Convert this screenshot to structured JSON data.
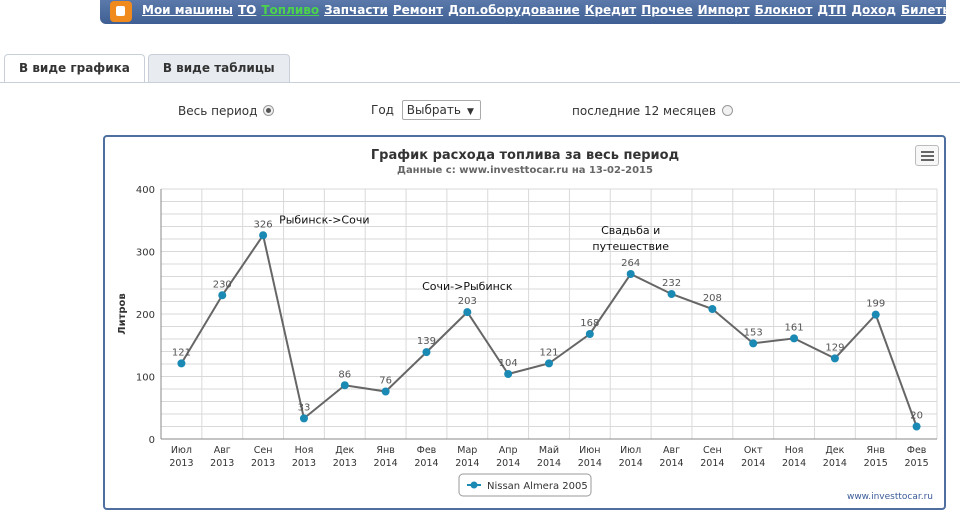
{
  "nav": {
    "items": [
      {
        "label": "Мои машины",
        "active": false
      },
      {
        "label": "ТО",
        "active": false
      },
      {
        "label": "Топливо",
        "active": true
      },
      {
        "label": "Запчасти",
        "active": false
      },
      {
        "label": "Ремонт",
        "active": false
      },
      {
        "label": "Доп.оборудование",
        "active": false
      },
      {
        "label": "Кредит",
        "active": false
      },
      {
        "label": "Прочее",
        "active": false
      },
      {
        "label": "Импорт",
        "active": false
      },
      {
        "label": "Блокнот",
        "active": false
      },
      {
        "label": "ДТП",
        "active": false
      },
      {
        "label": "Доход",
        "active": false
      },
      {
        "label": "Билеты ПДД",
        "active": false
      }
    ]
  },
  "tabs": {
    "graph": "В виде графика",
    "table": "В виде таблицы"
  },
  "filters": {
    "all_period": "Весь период",
    "year_label": "Год",
    "year_select": "Выбрать",
    "last12": "последние 12 месяцев"
  },
  "colors": {
    "line": "#666666",
    "point": "#1a8ab5",
    "grid": "#d9d9d9",
    "panel_border": "#4e6f9f"
  },
  "chart_data": {
    "type": "line",
    "title": "График расхода топлива за весь период",
    "subtitle": "Данные с: www.investtocar.ru на 13-02-2015",
    "ylabel": "Литров",
    "xlabel": "",
    "ylim": [
      0,
      400
    ],
    "yticks": [
      0,
      100,
      200,
      300,
      400
    ],
    "categories": [
      [
        "Июл",
        "2013"
      ],
      [
        "Авг",
        "2013"
      ],
      [
        "Сен",
        "2013"
      ],
      [
        "Ноя",
        "2013"
      ],
      [
        "Дек",
        "2013"
      ],
      [
        "Янв",
        "2014"
      ],
      [
        "Фев",
        "2014"
      ],
      [
        "Мар",
        "2014"
      ],
      [
        "Апр",
        "2014"
      ],
      [
        "Май",
        "2014"
      ],
      [
        "Июн",
        "2014"
      ],
      [
        "Июл",
        "2014"
      ],
      [
        "Авг",
        "2014"
      ],
      [
        "Сен",
        "2014"
      ],
      [
        "Окт",
        "2014"
      ],
      [
        "Ноя",
        "2014"
      ],
      [
        "Дек",
        "2014"
      ],
      [
        "Янв",
        "2015"
      ],
      [
        "Фев",
        "2015"
      ]
    ],
    "series": [
      {
        "name": "Nissan Almera 2005",
        "values": [
          121,
          230,
          326,
          33,
          86,
          76,
          139,
          203,
          104,
          121,
          168,
          264,
          232,
          208,
          153,
          161,
          129,
          199,
          20
        ]
      }
    ],
    "annotations": [
      {
        "index": 2,
        "text": [
          "Рыбинск->Сочи"
        ]
      },
      {
        "index": 7,
        "text": [
          "Сочи->Рыбинск"
        ]
      },
      {
        "index": 11,
        "text": [
          "Свадьба и",
          "путешествие"
        ]
      }
    ],
    "grid": true,
    "legend": "bottom-center",
    "credit": "www.investtocar.ru"
  }
}
